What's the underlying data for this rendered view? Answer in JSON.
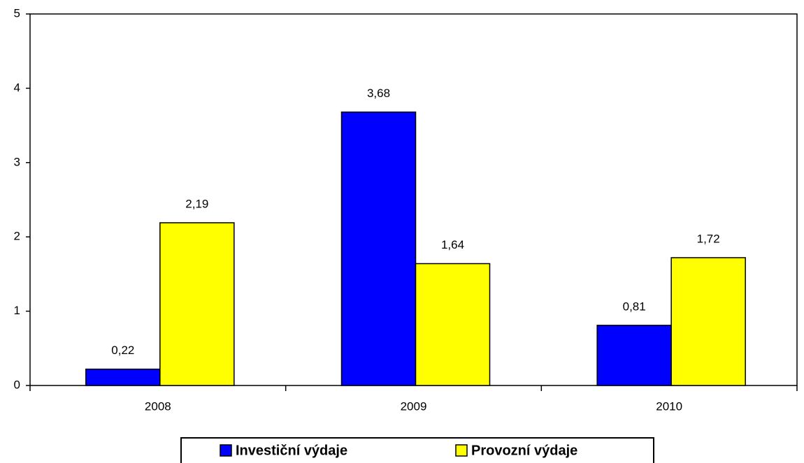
{
  "chart_data": {
    "type": "bar",
    "categories": [
      "2008",
      "2009",
      "2010"
    ],
    "series": [
      {
        "name": "Investiční výdaje",
        "color": "#0000ff",
        "values": [
          0.22,
          3.68,
          0.81
        ],
        "value_labels": [
          "0,22",
          "3,68",
          "0,81"
        ]
      },
      {
        "name": "Provozní výdaje",
        "color": "#ffff00",
        "values": [
          2.19,
          1.64,
          1.72
        ],
        "value_labels": [
          "2,19",
          "1,64",
          "1,72"
        ]
      }
    ],
    "ylim": [
      0,
      5
    ],
    "yticks": [
      0,
      1,
      2,
      3,
      4,
      5
    ],
    "legend": "bottom"
  }
}
